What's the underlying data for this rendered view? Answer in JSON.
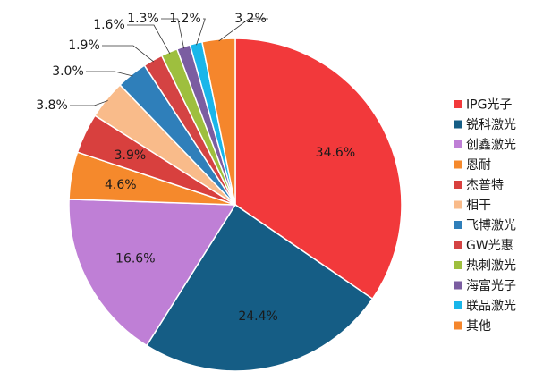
{
  "chart_data": {
    "type": "pie",
    "title": "",
    "categories": [
      "IPG光子",
      "锐科激光",
      "创鑫激光",
      "恩耐",
      "杰普特",
      "相干",
      "飞博激光",
      "GW光惠",
      "热刺激光",
      "海富光子",
      "联品激光",
      "其他"
    ],
    "values": [
      34.6,
      24.4,
      16.6,
      4.6,
      3.9,
      3.8,
      3.0,
      1.9,
      1.6,
      1.3,
      1.2,
      3.2
    ],
    "labels": [
      "34.6%",
      "24.4%",
      "16.6%",
      "4.6%",
      "3.9%",
      "3.8%",
      "3.0%",
      "1.9%",
      "1.6%",
      "1.3%",
      "1.2%",
      "3.2%"
    ],
    "colors": [
      "#f2393b",
      "#155d85",
      "#bf7fd6",
      "#f5892c",
      "#d8403e",
      "#f9bb8a",
      "#2f7fba",
      "#d44343",
      "#9ebf3e",
      "#7b5da1",
      "#19b6ea",
      "#f5862c"
    ],
    "legend_position": "right",
    "grid": false
  }
}
